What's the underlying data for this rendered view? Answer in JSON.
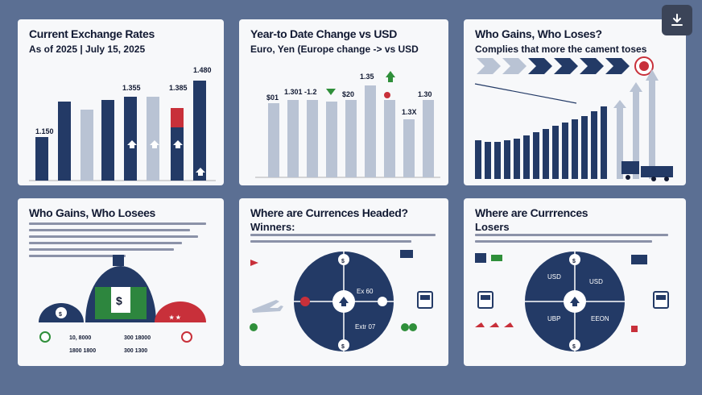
{
  "panels": {
    "p1": {
      "title": "Current Exchange Rates",
      "subtitle": "As of 2025 | July 15, 2025",
      "labels": [
        "1.480",
        "1.355",
        "1.385",
        "1.150"
      ]
    },
    "p2": {
      "title": "Year-to Date Change vs USD",
      "subtitle": "Euro, Yen (Europe change -> vs USD",
      "labels": [
        "1.35",
        "1.301 -1.2",
        "$20",
        "$01",
        "1.30",
        "1.3X"
      ]
    },
    "p3": {
      "title": "Who Gains, Who Loses?",
      "subtitle": "Complies that more the cament toses"
    },
    "p4": {
      "title": "Who Gains, Who Losees",
      "stats": [
        "10, 8000",
        "300 18000",
        "1800 1800",
        "300 1300"
      ]
    },
    "p5": {
      "title": "Where are Currences Headed?",
      "subtitle": "Winners:",
      "labels": [
        "Ex 60",
        "Extr 07"
      ]
    },
    "p6": {
      "title": "Where are Currrences",
      "subtitle": "Losers",
      "labels": [
        "USD",
        "USD",
        "UBP",
        "EEON"
      ]
    }
  },
  "colors": {
    "navy": "#233a66",
    "light_bar": "#b9c3d4",
    "red": "#c8303a",
    "green": "#2f8f3a"
  },
  "icons": [
    "download-icon",
    "airplane-icon",
    "arrow-up-icon",
    "dollar-icon",
    "truck-icon",
    "bus-icon"
  ]
}
